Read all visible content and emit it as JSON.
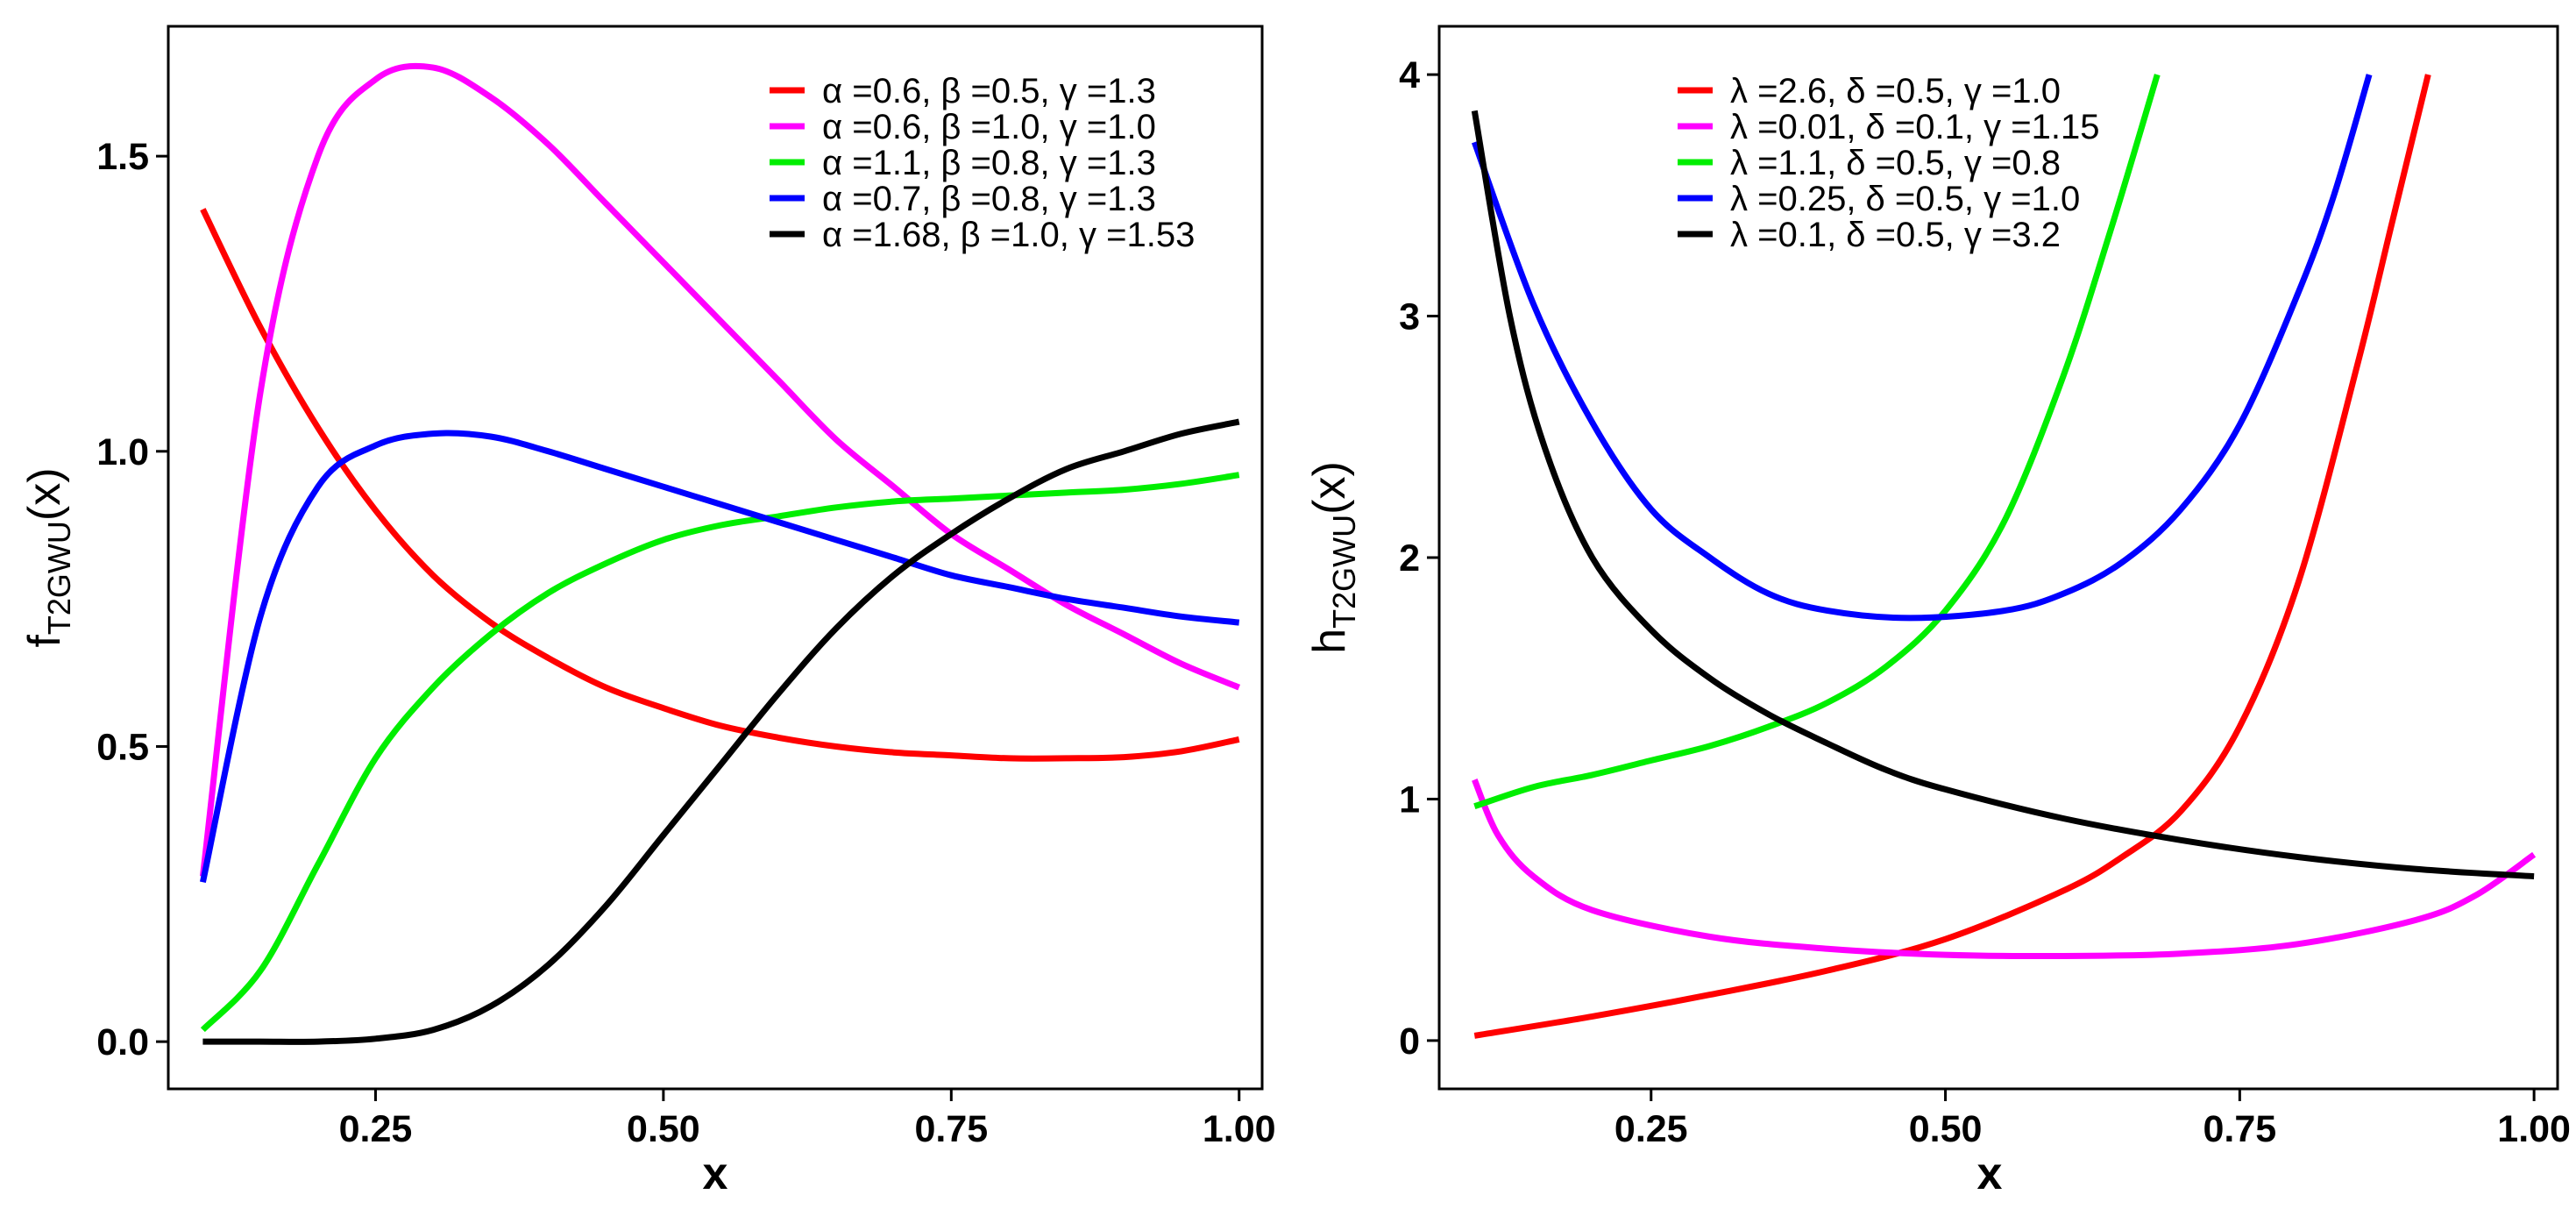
{
  "chart_data": [
    {
      "type": "line",
      "title": "",
      "xlabel": "x",
      "ylabel_main": "f",
      "ylabel_sub": "T2GWU",
      "ylabel_arg": "(x)",
      "xlim": [
        0.07,
        1.02
      ],
      "ylim": [
        -0.08,
        1.72
      ],
      "xticks": [
        0.25,
        0.5,
        0.75,
        1.0
      ],
      "xtick_labels": [
        "0.25",
        "0.50",
        "0.75",
        "1.00"
      ],
      "yticks": [
        0.0,
        0.5,
        1.0,
        1.5
      ],
      "ytick_labels": [
        "0.0",
        "0.5",
        "1.0",
        "1.5"
      ],
      "grid": false,
      "legend_position": "top-right",
      "x": [
        0.1,
        0.15,
        0.2,
        0.25,
        0.3,
        0.35,
        0.4,
        0.45,
        0.5,
        0.55,
        0.6,
        0.65,
        0.7,
        0.75,
        0.8,
        0.85,
        0.9,
        0.95,
        1.0
      ],
      "series": [
        {
          "name": "α =0.6, β =0.5, γ =1.3",
          "color": "#ff0000",
          "values": [
            1.41,
            1.21,
            1.04,
            0.9,
            0.79,
            0.71,
            0.65,
            0.6,
            0.565,
            0.535,
            0.515,
            0.5,
            0.49,
            0.485,
            0.48,
            0.48,
            0.482,
            0.492,
            0.512
          ]
        },
        {
          "name": "α =0.6, β =1.0, γ =1.0",
          "color": "#ff00ff",
          "values": [
            0.28,
            1.1,
            1.5,
            1.63,
            1.65,
            1.6,
            1.52,
            1.42,
            1.32,
            1.22,
            1.12,
            1.02,
            0.94,
            0.86,
            0.8,
            0.74,
            0.69,
            0.64,
            0.6
          ]
        },
        {
          "name": "α =1.1, β =0.8, γ =1.3",
          "color": "#00ee00",
          "values": [
            0.02,
            0.12,
            0.3,
            0.48,
            0.6,
            0.69,
            0.76,
            0.81,
            0.85,
            0.875,
            0.89,
            0.905,
            0.915,
            0.92,
            0.925,
            0.93,
            0.935,
            0.945,
            0.96
          ]
        },
        {
          "name": "α =0.7, β =0.8, γ =1.3",
          "color": "#0000ff",
          "values": [
            0.27,
            0.72,
            0.94,
            1.01,
            1.03,
            1.025,
            1.0,
            0.97,
            0.94,
            0.91,
            0.88,
            0.85,
            0.82,
            0.79,
            0.77,
            0.75,
            0.735,
            0.72,
            0.71
          ]
        },
        {
          "name": "α =1.68, β =1.0, γ =1.53",
          "color": "#000000",
          "values": [
            0.0,
            0.0,
            0.0,
            0.005,
            0.02,
            0.06,
            0.13,
            0.23,
            0.35,
            0.47,
            0.59,
            0.7,
            0.79,
            0.86,
            0.92,
            0.97,
            1.0,
            1.03,
            1.05
          ]
        }
      ]
    },
    {
      "type": "line",
      "title": "",
      "xlabel": "x",
      "ylabel_main": "h",
      "ylabel_sub": "T2GWU",
      "ylabel_arg": "(x)",
      "xlim": [
        0.07,
        1.02
      ],
      "ylim": [
        -0.2,
        4.2
      ],
      "xticks": [
        0.25,
        0.5,
        0.75,
        1.0
      ],
      "xtick_labels": [
        "0.25",
        "0.50",
        "0.75",
        "1.00"
      ],
      "yticks": [
        0,
        1,
        2,
        3,
        4
      ],
      "ytick_labels": [
        "0",
        "1",
        "2",
        "3",
        "4"
      ],
      "grid": false,
      "legend_position": "top-center",
      "series": [
        {
          "name": "λ =2.6, δ =0.5, γ =1.0",
          "color": "#ff0000",
          "x": [
            0.1,
            0.2,
            0.3,
            0.4,
            0.5,
            0.6,
            0.65,
            0.7,
            0.75,
            0.8,
            0.85,
            0.88,
            0.91
          ],
          "values": [
            0.02,
            0.1,
            0.19,
            0.29,
            0.42,
            0.62,
            0.76,
            0.95,
            1.3,
            1.9,
            2.8,
            3.4,
            4.0
          ]
        },
        {
          "name": "λ =0.01, δ =0.1, γ =1.15",
          "color": "#ff00ff",
          "x": [
            0.1,
            0.12,
            0.15,
            0.2,
            0.3,
            0.4,
            0.5,
            0.6,
            0.7,
            0.8,
            0.9,
            0.95,
            1.0
          ],
          "values": [
            1.08,
            0.85,
            0.68,
            0.54,
            0.43,
            0.38,
            0.355,
            0.35,
            0.36,
            0.4,
            0.5,
            0.6,
            0.77
          ]
        },
        {
          "name": "λ =1.1, δ =0.5, γ =0.8",
          "color": "#00ee00",
          "x": [
            0.1,
            0.15,
            0.2,
            0.25,
            0.3,
            0.35,
            0.4,
            0.45,
            0.5,
            0.55,
            0.6,
            0.64,
            0.68
          ],
          "values": [
            0.97,
            1.05,
            1.1,
            1.16,
            1.22,
            1.3,
            1.4,
            1.55,
            1.78,
            2.15,
            2.75,
            3.35,
            4.0
          ]
        },
        {
          "name": "λ =0.25, δ =0.5, γ =1.0",
          "color": "#0000ff",
          "x": [
            0.1,
            0.15,
            0.2,
            0.25,
            0.3,
            0.35,
            0.4,
            0.47,
            0.55,
            0.6,
            0.65,
            0.7,
            0.75,
            0.8,
            0.83,
            0.86
          ],
          "values": [
            3.72,
            3.05,
            2.56,
            2.2,
            2.0,
            1.85,
            1.78,
            1.75,
            1.78,
            1.85,
            1.98,
            2.2,
            2.55,
            3.1,
            3.5,
            4.0
          ]
        },
        {
          "name": "λ =0.1, δ =0.5, γ =3.2",
          "color": "#000000",
          "x": [
            0.1,
            0.13,
            0.16,
            0.2,
            0.25,
            0.3,
            0.35,
            0.4,
            0.45,
            0.5,
            0.6,
            0.7,
            0.8,
            0.9,
            1.0
          ],
          "values": [
            3.85,
            3.0,
            2.45,
            2.0,
            1.7,
            1.5,
            1.35,
            1.23,
            1.12,
            1.04,
            0.92,
            0.83,
            0.76,
            0.71,
            0.68
          ]
        }
      ]
    }
  ]
}
